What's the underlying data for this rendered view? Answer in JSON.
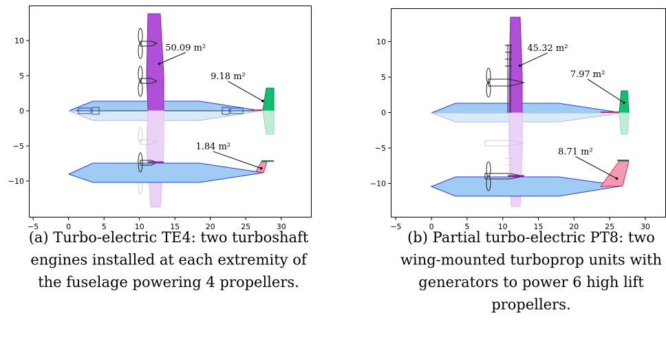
{
  "chart_data": [
    {
      "type": "planform",
      "xlim": [
        -5.6,
        34.3
      ],
      "ylim": [
        -15.2,
        15
      ],
      "xticks": [
        {
          "value": -5,
          "label": "−5"
        },
        0,
        5,
        10,
        15,
        20,
        25,
        30
      ],
      "yticks": [
        {
          "value": -10,
          "label": "−10"
        },
        {
          "value": -5,
          "label": "−5"
        },
        0,
        5,
        10
      ],
      "annotations": [
        {
          "text": "50.09 m²",
          "xy": [
            12.8,
            6.7
          ],
          "xytext": [
            16.5,
            8.6
          ]
        },
        {
          "text": "9.18 m²",
          "xy": [
            27.4,
            1.4
          ],
          "xytext": [
            22.5,
            4.5
          ]
        },
        {
          "text": "1.84 m²",
          "xy": [
            27.2,
            -8.2
          ],
          "xytext": [
            20.4,
            -5.5
          ]
        }
      ],
      "caption": [
        "(a) Turbo-electric TE4: two turboshaft",
        "engines installed at each extremity of",
        "the fuselage powering 4 propellers."
      ]
    },
    {
      "type": "planform",
      "xlim": [
        -5.7,
        32.9
      ],
      "ylim": [
        -14.8,
        14.7
      ],
      "xticks": [
        {
          "value": -5,
          "label": "−5"
        },
        0,
        5,
        10,
        15,
        20,
        25,
        30
      ],
      "yticks": [
        {
          "value": -10,
          "label": "−10"
        },
        {
          "value": -5,
          "label": "−5"
        },
        0,
        5,
        10
      ],
      "annotations": [
        {
          "text": "45.32 m²",
          "xy": [
            12.4,
            6.6
          ],
          "xytext": [
            16.3,
            8.7
          ]
        },
        {
          "text": "7.97 m²",
          "xy": [
            27.0,
            1.4
          ],
          "xytext": [
            21.9,
            5.0
          ]
        },
        {
          "text": "8.71 m²",
          "xy": [
            26.0,
            -9.3
          ],
          "xytext": [
            20.2,
            -5.9
          ]
        }
      ],
      "caption": [
        "(b) Partial turbo-electric PT8: two",
        "wing-mounted turboprop units with",
        "generators to power 6 high lift",
        "propellers."
      ]
    }
  ]
}
